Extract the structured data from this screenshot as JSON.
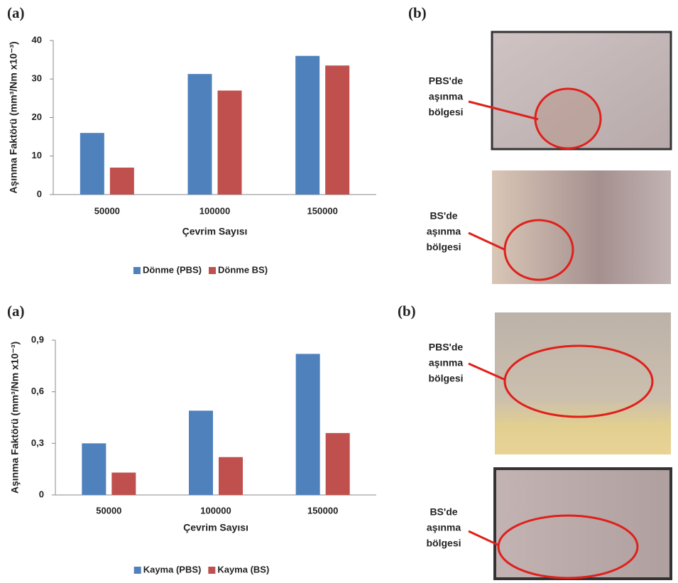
{
  "panel_labels": [
    "(a)",
    "(b)",
    "(a)",
    "(b)"
  ],
  "photo_labels": [
    [
      "PBS'de",
      "aşınma",
      "bölgesi"
    ],
    [
      "BS'de",
      "aşınma",
      "bölgesi"
    ],
    [
      "PBS'de",
      "aşınma",
      "bölgesi"
    ],
    [
      "BS'de",
      "aşınma",
      "bölgesi"
    ]
  ],
  "chart_data": [
    {
      "type": "bar",
      "y_label": "Aşınma Faktörü (mm³/Nm x10⁻³)",
      "x_label": "Çevrim Sayısı",
      "categories": [
        "50000",
        "100000",
        "150000"
      ],
      "series": [
        {
          "name": "Dönme (PBS)",
          "color": "#4f81bd",
          "values": [
            16,
            31.3,
            36
          ]
        },
        {
          "name": "Dönme BS)",
          "color": "#c0504d",
          "values": [
            7,
            27,
            33.5
          ]
        }
      ],
      "ylim": [
        0,
        40
      ],
      "yticks": [
        0,
        10,
        20,
        30,
        40
      ],
      "legend": "bottom"
    },
    {
      "type": "bar",
      "y_label": "Aşınma Faktörü (mm³/Nm x10⁻³)",
      "x_label": "Çevrim Sayısı",
      "categories": [
        "50000",
        "100000",
        "150000"
      ],
      "series": [
        {
          "name": "Kayma (PBS)",
          "color": "#4f81bd",
          "values": [
            0.3,
            0.49,
            0.82
          ]
        },
        {
          "name": "Kayma (BS)",
          "color": "#c0504d",
          "values": [
            0.13,
            0.22,
            0.36
          ]
        }
      ],
      "ylim": [
        0,
        0.9
      ],
      "yticks": [
        0,
        {
          "value": 0.3,
          "label": "0,3"
        },
        {
          "value": 0.6,
          "label": "0,6"
        },
        {
          "value": 0.9,
          "label": "0,9"
        }
      ],
      "legend": "bottom"
    }
  ]
}
